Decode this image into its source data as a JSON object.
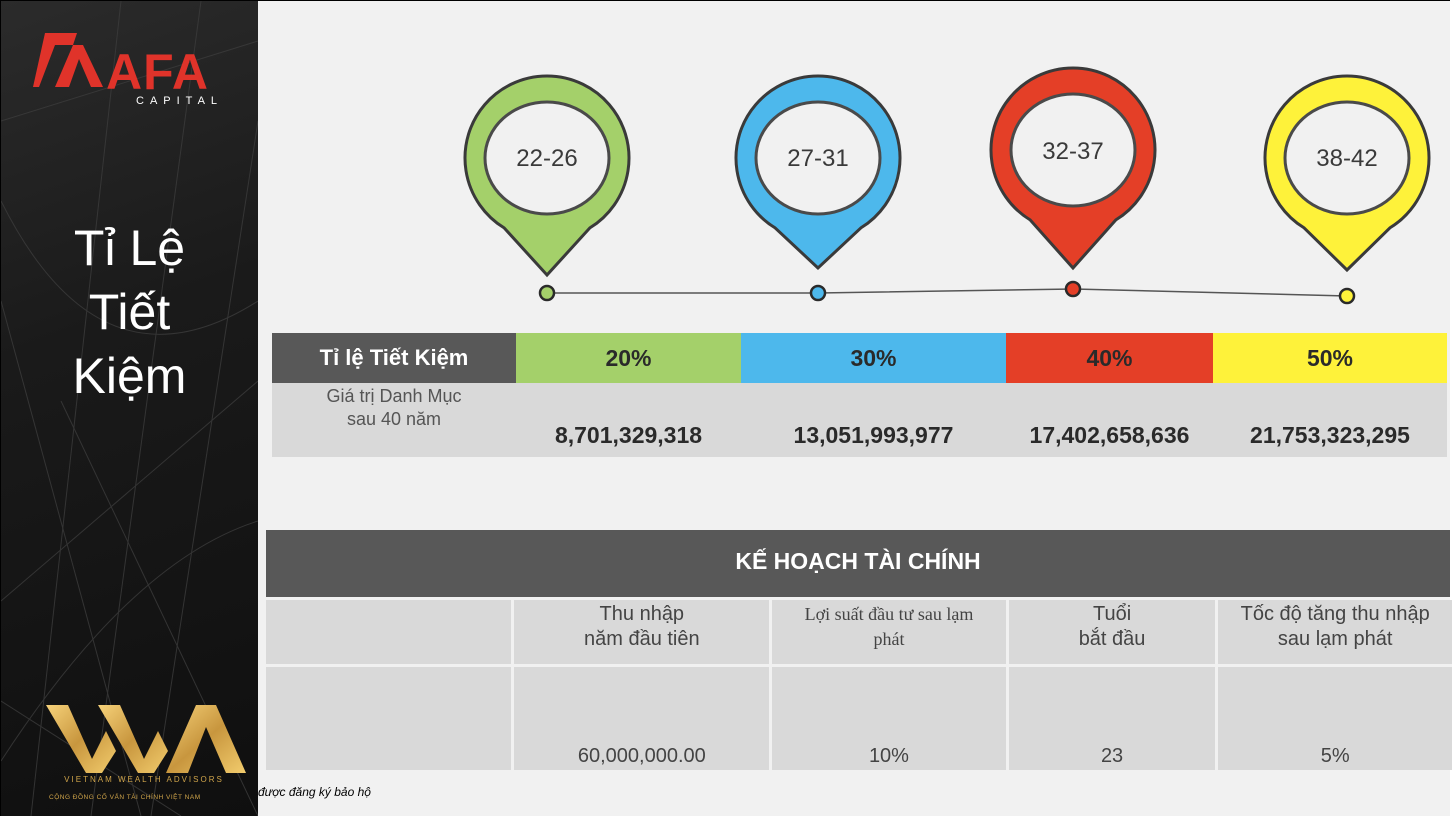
{
  "logo": {
    "brand": "AFA",
    "sub": "CAPITAL"
  },
  "sidebar": {
    "title_lines": [
      "Tỉ Lệ",
      "Tiết",
      "Kiệm"
    ]
  },
  "vwa": {
    "name": "VIETNAM WEALTH ADVISORS",
    "tagline": "CỘNG ĐỒNG CỐ VẤN TÀI CHÍNH VIỆT NAM"
  },
  "footer_note": "được đăng ký bảo hộ",
  "pins": [
    {
      "label": "22-26",
      "color": "#a4d06a"
    },
    {
      "label": "27-31",
      "color": "#4db8ec"
    },
    {
      "label": "32-37",
      "color": "#e43f27"
    },
    {
      "label": "38-42",
      "color": "#fef23a"
    }
  ],
  "savings_table": {
    "row_label": "Tỉ lệ Tiết Kiệm",
    "rates": [
      "20%",
      "30%",
      "40%",
      "50%"
    ],
    "rate_colors": [
      "#a4d06a",
      "#4db8ec",
      "#e43f27",
      "#fef23a"
    ],
    "value_label_line1": "Giá trị Danh Mục",
    "value_label_line2": "sau 40 năm",
    "values": [
      "8,701,329,318",
      "13,051,993,977",
      "17,402,658,636",
      "21,753,323,295"
    ]
  },
  "plan": {
    "title": "KẾ HOẠCH TÀI CHÍNH",
    "headers": [
      [
        "Thu nhập",
        "năm đầu tiên"
      ],
      [
        "Lợi suất đầu tư sau lạm",
        "phát"
      ],
      [
        "Tuổi",
        "bắt đầu"
      ],
      [
        "Tốc độ tăng thu nhập",
        "sau lạm phát"
      ]
    ],
    "values": [
      "60,000,000.00",
      "10%",
      "23",
      "5%"
    ]
  }
}
